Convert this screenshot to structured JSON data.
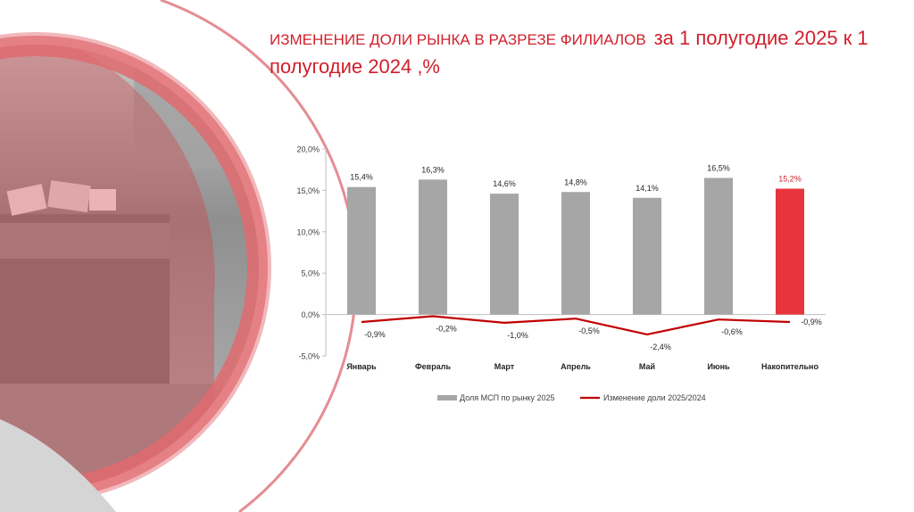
{
  "slide": {
    "title_part1": "ИЗМЕНЕНИЕ ДОЛИ РЫНКА В РАЗРЕЗЕ ФИЛИАЛОВ",
    "title_part2": "за 1 полугодие 2025 к 1 полугодие 2024 ,%"
  },
  "colors": {
    "bar": "#a6a6a6",
    "bar_highlight": "#e8343c",
    "line": "#c00000",
    "accent": "#d01f2a"
  },
  "chart_data": {
    "type": "bar",
    "categories": [
      "Январь",
      "Февраль",
      "Март",
      "Апрель",
      "Май",
      "Июнь",
      "Накопительно"
    ],
    "series": [
      {
        "name": "Доля МСП по рынку 2025",
        "type": "bar",
        "values": [
          15.4,
          16.3,
          14.6,
          14.8,
          14.1,
          16.5,
          15.2
        ],
        "labels": [
          "15,4%",
          "16,3%",
          "14,6%",
          "14,8%",
          "14,1%",
          "16,5%",
          "15,2%"
        ],
        "highlight_index": 6
      },
      {
        "name": "Изменение доли 2025/2024",
        "type": "line",
        "values": [
          -0.9,
          -0.2,
          -1.0,
          -0.5,
          -2.4,
          -0.6,
          -0.9
        ],
        "labels": [
          "-0,9%",
          "-0,2%",
          "-1,0%",
          "-0,5%",
          "-2,4%",
          "-0,6%",
          "-0,9%"
        ]
      }
    ],
    "ylim": [
      -5,
      20
    ],
    "yticks": [
      20,
      15,
      10,
      5,
      0,
      -5
    ],
    "ytick_labels": [
      "20,0%",
      "15,0%",
      "10,0%",
      "5,0%",
      "0,0%",
      "-5,0%"
    ],
    "xlabel": "",
    "ylabel": "",
    "legend": "bottom",
    "grid": false
  }
}
